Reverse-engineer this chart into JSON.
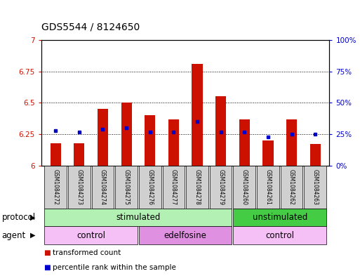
{
  "title": "GDS5544 / 8124650",
  "samples": [
    "GSM1084272",
    "GSM1084273",
    "GSM1084274",
    "GSM1084275",
    "GSM1084276",
    "GSM1084277",
    "GSM1084278",
    "GSM1084279",
    "GSM1084260",
    "GSM1084261",
    "GSM1084262",
    "GSM1084263"
  ],
  "bar_values": [
    6.18,
    6.18,
    6.45,
    6.5,
    6.4,
    6.37,
    6.81,
    6.55,
    6.37,
    6.2,
    6.37,
    6.17
  ],
  "percentile_values": [
    28,
    27,
    29,
    30,
    27,
    27,
    35,
    27,
    27,
    23,
    25,
    25
  ],
  "bar_color": "#cc1100",
  "percentile_color": "#0000cc",
  "ylim_left": [
    6.0,
    7.0
  ],
  "ylim_right": [
    0,
    100
  ],
  "yticks_left": [
    6.0,
    6.25,
    6.5,
    6.75,
    7.0
  ],
  "yticks_right": [
    0,
    25,
    50,
    75,
    100
  ],
  "ytick_labels_left": [
    "6",
    "6.25",
    "6.5",
    "6.75",
    "7"
  ],
  "ytick_labels_right": [
    "0%",
    "25%",
    "50%",
    "75%",
    "100%"
  ],
  "grid_color": "black",
  "bar_width": 0.45,
  "protocol_groups": [
    {
      "label": "stimulated",
      "start": 0,
      "end": 7,
      "color": "#b3f0b3"
    },
    {
      "label": "unstimulated",
      "start": 8,
      "end": 11,
      "color": "#44cc44"
    }
  ],
  "agent_groups": [
    {
      "label": "control",
      "start": 0,
      "end": 3,
      "color": "#f5c0f5"
    },
    {
      "label": "edelfosine",
      "start": 4,
      "end": 7,
      "color": "#e090e0"
    },
    {
      "label": "control",
      "start": 8,
      "end": 11,
      "color": "#f5c0f5"
    }
  ],
  "protocol_label": "protocol",
  "agent_label": "agent",
  "legend_items": [
    {
      "label": "transformed count",
      "color": "#cc1100"
    },
    {
      "label": "percentile rank within the sample",
      "color": "#0000cc"
    }
  ],
  "title_fontsize": 10,
  "tick_fontsize": 7.5,
  "label_fontsize": 8.5,
  "sample_fontsize": 5.5,
  "left_tick_color": "#cc1100",
  "right_tick_color": "#0000cc",
  "sample_box_color": "#d0d0d0"
}
